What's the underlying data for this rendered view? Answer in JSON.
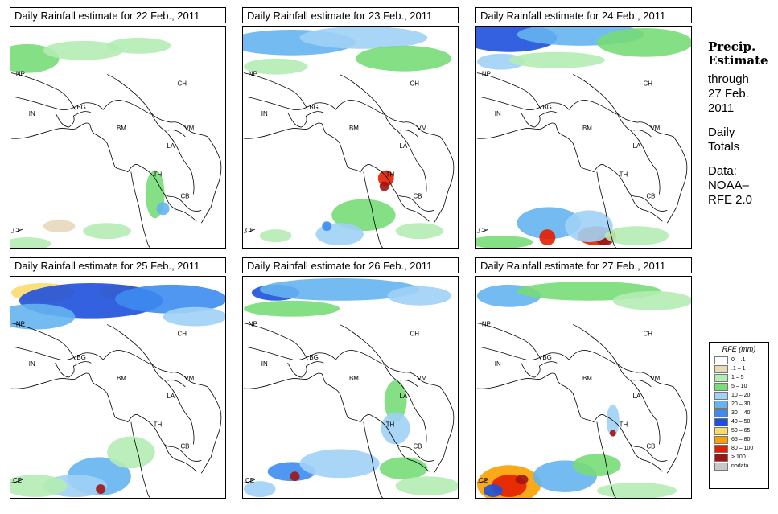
{
  "panels": [
    {
      "title": "Daily Rainfall estimate for  22 Feb., 2011",
      "level": 0
    },
    {
      "title": "Daily Rainfall estimate for  23 Feb., 2011",
      "level": 1
    },
    {
      "title": "Daily Rainfall estimate for  24 Feb., 2011",
      "level": 2
    },
    {
      "title": "Daily Rainfall estimate for  25 Feb., 2011",
      "level": 3
    },
    {
      "title": "Daily Rainfall estimate for  26 Feb., 2011",
      "level": 4
    },
    {
      "title": "Daily Rainfall estimate for  27 Feb., 2011",
      "level": 5
    }
  ],
  "map_labels": {
    "np": "NP",
    "ch": "CH",
    "in": "IN",
    "bg": "BG",
    "bm": "BM",
    "vm": "VM",
    "la": "LA",
    "th": "TH",
    "cb": "CB",
    "ce": "CE"
  },
  "sidebar": {
    "heading_1": "Precip.",
    "heading_2": "Estimate",
    "line_1": "through",
    "line_2": "27 Feb.",
    "line_3": "2011",
    "line_4": "Daily",
    "line_5": "Totals",
    "line_6": "Data:",
    "line_7": "NOAA–",
    "line_8": "RFE 2.0"
  },
  "legend": {
    "title": "RFE (mm)",
    "items": [
      {
        "label": "0 – .1",
        "color": "#ffffff"
      },
      {
        "label": ".1 – 1",
        "color": "#e8d8bc"
      },
      {
        "label": "1 – 5",
        "color": "#b4ecb4"
      },
      {
        "label": "5 – 10",
        "color": "#78dc78"
      },
      {
        "label": "10 – 20",
        "color": "#a0d2f5"
      },
      {
        "label": "20 – 30",
        "color": "#64b4f0"
      },
      {
        "label": "30 – 40",
        "color": "#3c8cf0"
      },
      {
        "label": "40 – 50",
        "color": "#1e50dc"
      },
      {
        "label": "50 – 65",
        "color": "#fadc6e"
      },
      {
        "label": "65 – 80",
        "color": "#faa000"
      },
      {
        "label": "80 – 100",
        "color": "#e61e00"
      },
      {
        "label": "> 100",
        "color": "#a01414"
      },
      {
        "label": "nodata",
        "color": "#c8c8c8"
      }
    ]
  }
}
